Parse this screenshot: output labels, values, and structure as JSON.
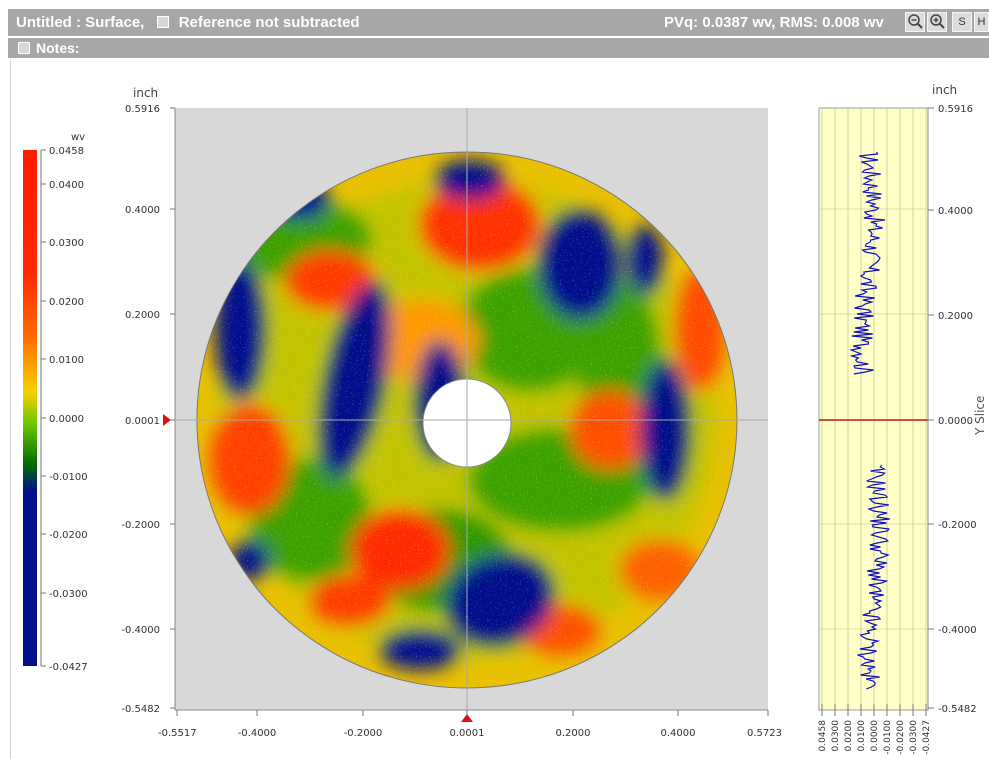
{
  "titlebar": {
    "title": "Untitled : Surface,",
    "reference": "Reference not subtracted",
    "stats": "PVq: 0.0387 wv, RMS: 0.008 wv",
    "buttons": [
      {
        "name": "zoom-out",
        "glyph": "-"
      },
      {
        "name": "zoom-in",
        "glyph": "+"
      },
      {
        "name": "s",
        "glyph": "S"
      },
      {
        "name": "h",
        "glyph": "H"
      }
    ]
  },
  "notes": {
    "label": "Notes:"
  },
  "colorbar": {
    "unit": "wv",
    "ticks": [
      "0.0458",
      "0.0400",
      "0.0300",
      "0.0200",
      "0.0100",
      "0.0000",
      "-0.0100",
      "-0.0200",
      "-0.0300",
      "-0.0427"
    ],
    "colors": {
      "high": "#ff1a00",
      "mid": "#f8d000",
      "zero": "#6cc800",
      "low": "#000f8c"
    }
  },
  "map": {
    "y_unit": "inch",
    "y_ticks": [
      "0.5916",
      "0.4000",
      "0.2000",
      "0.0001",
      "-0.2000",
      "-0.4000",
      "-0.5482"
    ],
    "x_ticks": [
      "-0.5517",
      "-0.4000",
      "-0.2000",
      "0.0001",
      "0.2000",
      "0.4000",
      "0.5723"
    ]
  },
  "slice": {
    "unit": "inch",
    "title": "Y Slice",
    "y_ticks": [
      "0.5916",
      "0.4000",
      "0.2000",
      "0.0000",
      "-0.2000",
      "-0.4000",
      "-0.5482"
    ],
    "x_ticks": [
      "0.0458",
      "0.0300",
      "0.0200",
      "0.0100",
      "0.0000",
      "-0.0100",
      "-0.0200",
      "-0.0300",
      "-0.0427"
    ]
  }
}
